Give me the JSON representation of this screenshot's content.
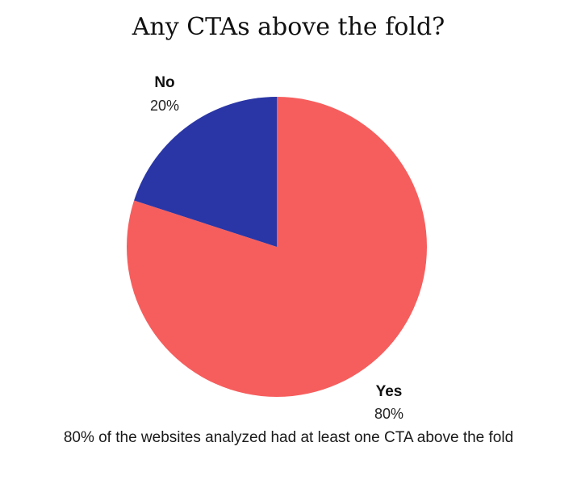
{
  "chart_data": {
    "type": "pie",
    "title": "Any CTAs above the fold?",
    "slices": [
      {
        "label": "Yes",
        "value": 80,
        "value_label": "80%",
        "color": "#f65e5d"
      },
      {
        "label": "No",
        "value": 20,
        "value_label": "20%",
        "color": "#2a36a6"
      }
    ],
    "caption": "80% of the websites analyzed had at least one CTA above the fold"
  }
}
